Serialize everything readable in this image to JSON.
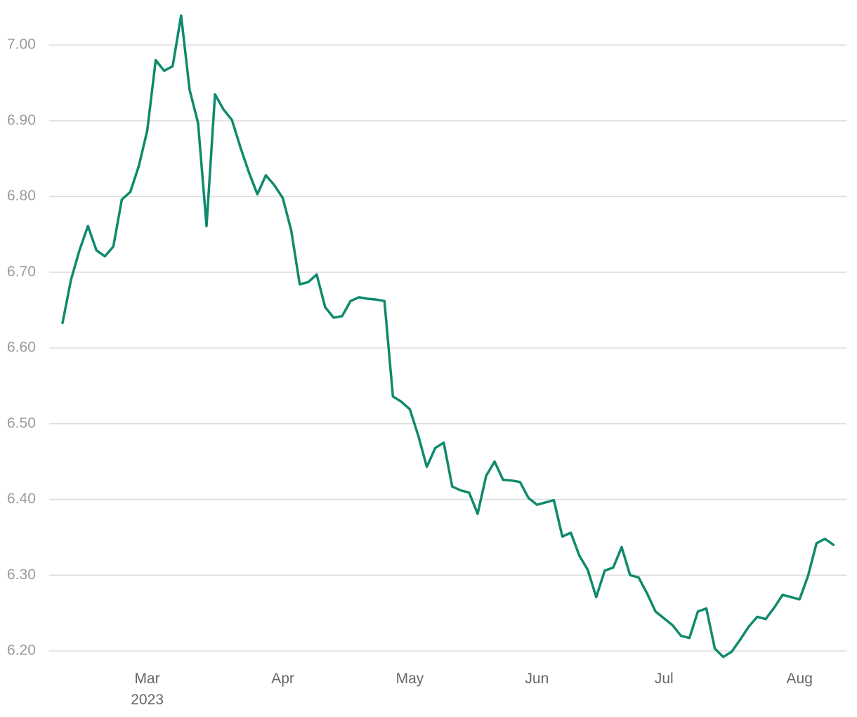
{
  "chart_data": {
    "type": "line",
    "color": "#0f8a6c",
    "grid": true,
    "ylim": [
      6.18,
      7.04
    ],
    "yticks": [
      {
        "value": 6.2,
        "label": "6.20"
      },
      {
        "value": 6.3,
        "label": "6.30"
      },
      {
        "value": 6.4,
        "label": "6.40"
      },
      {
        "value": 6.5,
        "label": "6.50"
      },
      {
        "value": 6.6,
        "label": "6.60"
      },
      {
        "value": 6.7,
        "label": "6.70"
      },
      {
        "value": 6.8,
        "label": "6.80"
      },
      {
        "value": 6.9,
        "label": "6.90"
      },
      {
        "value": 7.0,
        "label": "7.00"
      }
    ],
    "categories": [
      null,
      null,
      null,
      null,
      null,
      null,
      null,
      null,
      null,
      null,
      "Mar 2023",
      null,
      null,
      null,
      null,
      null,
      null,
      null,
      null,
      null,
      null,
      null,
      null,
      null,
      null,
      null,
      "Apr",
      null,
      null,
      null,
      null,
      null,
      null,
      null,
      null,
      null,
      null,
      null,
      null,
      null,
      null,
      "May",
      null,
      null,
      null,
      null,
      null,
      null,
      null,
      null,
      null,
      null,
      null,
      null,
      null,
      null,
      "Jun",
      null,
      null,
      null,
      null,
      null,
      null,
      null,
      null,
      null,
      null,
      null,
      null,
      null,
      null,
      "Jul",
      null,
      null,
      null,
      null,
      null,
      null,
      null,
      null,
      null,
      null,
      null,
      null,
      null,
      null,
      null,
      "Aug",
      null,
      null,
      null,
      null
    ],
    "values": [
      6.633,
      6.69,
      6.729,
      6.761,
      6.729,
      6.721,
      6.734,
      6.796,
      6.806,
      6.84,
      6.887,
      6.98,
      6.966,
      6.972,
      7.039,
      6.941,
      6.897,
      6.761,
      6.935,
      6.915,
      6.901,
      6.865,
      6.832,
      6.803,
      6.828,
      6.815,
      6.798,
      6.755,
      6.684,
      6.687,
      6.697,
      6.654,
      6.64,
      6.642,
      6.662,
      6.667,
      6.665,
      6.664,
      6.662,
      6.536,
      6.529,
      6.519,
      6.484,
      6.443,
      6.468,
      6.475,
      6.417,
      6.412,
      6.409,
      6.381,
      6.431,
      6.45,
      6.426,
      6.425,
      6.423,
      6.402,
      6.393,
      6.396,
      6.399,
      6.351,
      6.356,
      6.326,
      6.307,
      6.271,
      6.306,
      6.31,
      6.337,
      6.3,
      6.297,
      6.276,
      6.252,
      6.243,
      6.234,
      6.22,
      6.217,
      6.252,
      6.256,
      6.203,
      6.192,
      6.199,
      6.215,
      6.232,
      6.245,
      6.242,
      6.257,
      6.274,
      6.271,
      6.268,
      6.299,
      6.342,
      6.348,
      6.34
    ]
  }
}
